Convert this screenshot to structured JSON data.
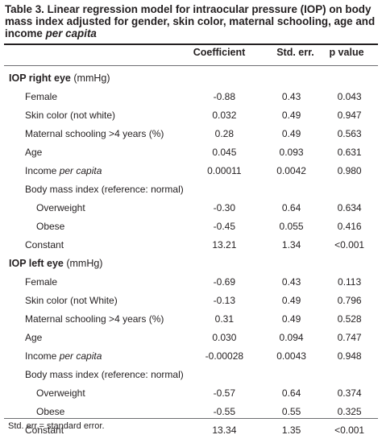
{
  "title": {
    "prefix": "Table 3. Linear regression model for intraocular pressure (IOP) on body mass index adjusted for gender, skin color, maternal schooling, age and income ",
    "italic": "per capita"
  },
  "columns": [
    "Coefficient",
    "Std. err.",
    "p value"
  ],
  "sections": [
    {
      "label": "IOP right eye",
      "unit": " (mmHg)",
      "rows": [
        {
          "label": "Female",
          "values": [
            "-0.88",
            "0.43",
            "0.043"
          ]
        },
        {
          "label": "Skin color (not white)",
          "values": [
            "0.032",
            "0.49",
            "0.947"
          ]
        },
        {
          "label": "Maternal schooling >4 years (%)",
          "values": [
            "0.28",
            "0.49",
            "0.563"
          ]
        },
        {
          "label": "Age",
          "values": [
            "0.045",
            "0.093",
            "0.631"
          ]
        },
        {
          "label": "Income ",
          "label_italic": "per capita",
          "values": [
            "0.00011",
            "0.0042",
            "0.980"
          ]
        },
        {
          "label": "Body mass index (reference: normal)",
          "values": [
            "",
            "",
            ""
          ]
        },
        {
          "label": "Overweight",
          "values": [
            "-0.30",
            "0.64",
            "0.634"
          ]
        },
        {
          "label": "Obese",
          "values": [
            "-0.45",
            "0.055",
            "0.416"
          ]
        },
        {
          "label": "Constant",
          "values": [
            "13.21",
            "1.34",
            "<0.001"
          ]
        }
      ]
    },
    {
      "label": "IOP left eye",
      "unit": " (mmHg)",
      "rows": [
        {
          "label": "Female",
          "values": [
            "-0.69",
            "0.43",
            "0.113"
          ]
        },
        {
          "label": "Skin color (not White)",
          "values": [
            "-0.13",
            "0.49",
            "0.796"
          ]
        },
        {
          "label": "Maternal schooling >4 years (%)",
          "values": [
            "0.31",
            "0.49",
            "0.528"
          ]
        },
        {
          "label": "Age",
          "values": [
            "0.030",
            "0.094",
            "0.747"
          ]
        },
        {
          "label": "Income ",
          "label_italic": "per capita",
          "values": [
            "-0.00028",
            "0.0043",
            "0.948"
          ]
        },
        {
          "label": "Body mass index (reference: normal)",
          "values": [
            "",
            "",
            ""
          ]
        },
        {
          "label": "Overweight",
          "values": [
            "-0.57",
            "0.64",
            "0.374"
          ]
        },
        {
          "label": "Obese",
          "values": [
            "-0.55",
            "0.55",
            "0.325"
          ]
        },
        {
          "label": "Constant",
          "values": [
            "13.34",
            "1.35",
            "<0.001"
          ]
        }
      ]
    }
  ],
  "footnote": "Std. err.= standard error."
}
